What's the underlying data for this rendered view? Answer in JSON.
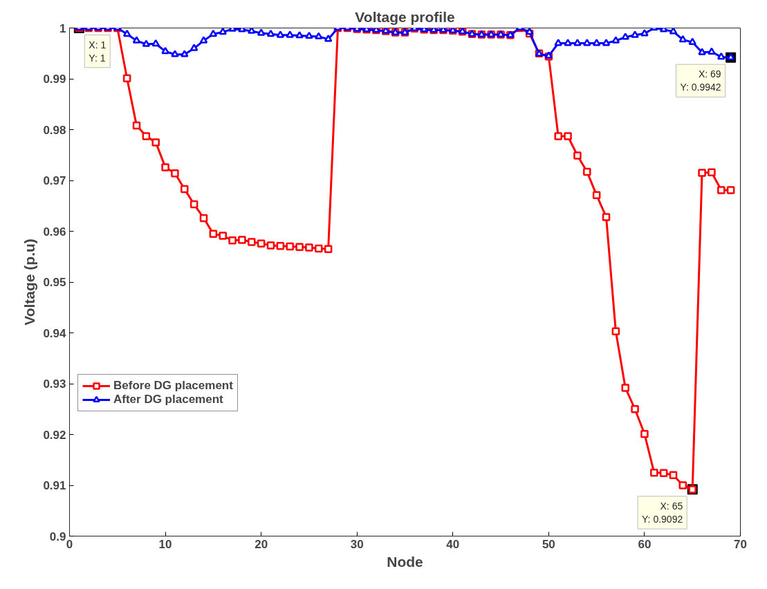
{
  "chart_data": {
    "type": "line",
    "title": "Voltage profile",
    "xlabel": "Node",
    "ylabel": "Voltage (p.u)",
    "x": [
      1,
      2,
      3,
      4,
      5,
      6,
      7,
      8,
      9,
      10,
      11,
      12,
      13,
      14,
      15,
      16,
      17,
      18,
      19,
      20,
      21,
      22,
      23,
      24,
      25,
      26,
      27,
      28,
      29,
      30,
      31,
      32,
      33,
      34,
      35,
      36,
      37,
      38,
      39,
      40,
      41,
      42,
      43,
      44,
      45,
      46,
      47,
      48,
      49,
      50,
      51,
      52,
      53,
      54,
      55,
      56,
      57,
      58,
      59,
      60,
      61,
      62,
      63,
      64,
      65,
      66,
      67,
      68,
      69
    ],
    "series": [
      {
        "name": "Before DG placement",
        "color": "#ff0000",
        "marker": "square",
        "values": [
          1,
          1,
          1,
          1,
          1,
          0.9901,
          0.9808,
          0.9787,
          0.9775,
          0.9726,
          0.9714,
          0.9683,
          0.9653,
          0.9626,
          0.9595,
          0.9591,
          0.9582,
          0.9583,
          0.9579,
          0.9576,
          0.9572,
          0.9571,
          0.957,
          0.9569,
          0.9568,
          0.9566,
          0.9565,
          1,
          1,
          0.9998,
          0.9997,
          0.9996,
          0.9994,
          0.9991,
          0.9991,
          0.9999,
          0.9997,
          0.9996,
          0.9996,
          0.9995,
          0.9993,
          0.9988,
          0.9987,
          0.9987,
          0.9987,
          0.9986,
          1,
          0.9989,
          0.995,
          0.9944,
          0.9787,
          0.9787,
          0.9749,
          0.9717,
          0.9671,
          0.9628,
          0.9403,
          0.9292,
          0.925,
          0.9201,
          0.9125,
          0.9124,
          0.912,
          0.91,
          0.9092,
          0.9715,
          0.9716,
          0.9681,
          0.9681
        ]
      },
      {
        "name": "After DG placement",
        "color": "#0000ff",
        "marker": "triangle",
        "values": [
          1,
          1,
          1,
          1,
          1,
          0.9988,
          0.9975,
          0.9968,
          0.9969,
          0.9954,
          0.9948,
          0.9948,
          0.996,
          0.9975,
          0.9988,
          0.9992,
          0.9998,
          0.9997,
          0.9994,
          0.999,
          0.9988,
          0.9986,
          0.9986,
          0.9985,
          0.9984,
          0.9983,
          0.9978,
          1,
          1,
          0.9998,
          0.9997,
          0.9996,
          0.9994,
          0.9991,
          0.9991,
          0.9999,
          0.9997,
          0.9996,
          0.9996,
          0.9995,
          0.9993,
          0.9988,
          0.9987,
          0.9987,
          0.9987,
          0.9986,
          1,
          0.9992,
          0.9949,
          0.9945,
          0.997,
          0.997,
          0.997,
          0.997,
          0.997,
          0.997,
          0.9975,
          0.9982,
          0.9986,
          0.9989,
          1,
          0.9997,
          0.9993,
          0.9977,
          0.9972,
          0.9952,
          0.9953,
          0.9943,
          0.9942
        ]
      }
    ],
    "xlim": [
      0,
      70
    ],
    "xticks": [
      0,
      10,
      20,
      30,
      40,
      50,
      60,
      70
    ],
    "ylim": [
      0.9,
      1
    ],
    "yticks": [
      0.9,
      0.91,
      0.92,
      0.93,
      0.94,
      0.95,
      0.96,
      0.97,
      0.98,
      0.99,
      1
    ],
    "grid": false,
    "legend": "bottom left",
    "line_style": "solid",
    "annotations": [
      {
        "text": "X: 1\nY: 1",
        "x": 1,
        "y": 1
      },
      {
        "text": "X: 69\nY: 0.9942",
        "x": 69,
        "y": 0.9942
      },
      {
        "text": "X: 65\nY: 0.9092",
        "x": 65,
        "y": 0.9092
      }
    ]
  }
}
